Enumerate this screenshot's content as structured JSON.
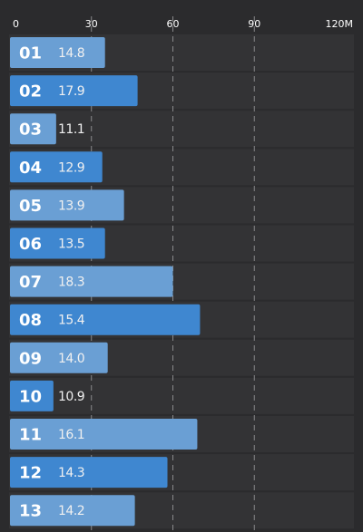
{
  "chart_data": {
    "type": "bar",
    "orientation": "horizontal",
    "title": "",
    "xlabel": "",
    "ylabel": "",
    "x_axis_position": "top",
    "xlim": [
      0,
      120
    ],
    "xticks": [
      0,
      30,
      60,
      90,
      120
    ],
    "xtick_labels": [
      "0",
      "30",
      "60",
      "90",
      "120M"
    ],
    "grid": true,
    "legend": "none",
    "categories": [
      "01",
      "02",
      "03",
      "04",
      "05",
      "06",
      "07",
      "08",
      "09",
      "10",
      "11",
      "12",
      "13"
    ],
    "values": [
      35,
      47,
      17,
      34,
      42,
      35,
      60,
      70,
      36,
      16,
      69,
      58,
      46
    ],
    "bar_labels": [
      "14.8",
      "17.9",
      "11.1",
      "12.9",
      "13.9",
      "13.5",
      "18.3",
      "15.4",
      "14.0",
      "10.9",
      "16.1",
      "14.3",
      "14.2"
    ],
    "bar_colors": [
      "#6a9fd4",
      "#3f87d0",
      "#6a9fd4",
      "#3f87d0",
      "#6a9fd4",
      "#3f87d0",
      "#6a9fd4",
      "#3f87d0",
      "#6a9fd4",
      "#3f87d0",
      "#6a9fd4",
      "#3f87d0",
      "#6a9fd4"
    ]
  },
  "colors": {
    "background": "#2b2b2d",
    "row_background": "#333335",
    "grid": "#8a8a8c",
    "tick_text": "#ffffff",
    "category_text": "#ffffff",
    "value_text": "#f0f0f0"
  }
}
